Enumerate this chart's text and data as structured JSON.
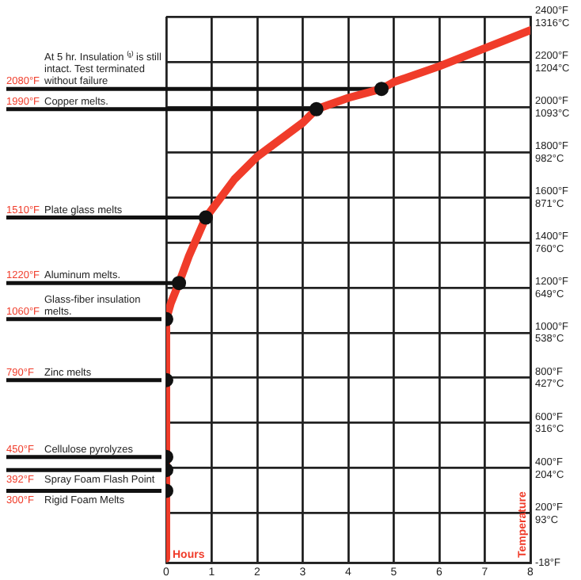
{
  "chart_data": {
    "type": "line",
    "xlabel": "Hours",
    "ylabel": "Temperature",
    "xlim": [
      0,
      8
    ],
    "xticks": [
      0,
      1,
      2,
      3,
      4,
      5,
      6,
      7,
      8
    ],
    "ylim": [
      -18,
      2400
    ],
    "yticks": [
      {
        "value": -18,
        "label": "-18°F"
      },
      {
        "value": 200,
        "label": "200°F"
      },
      {
        "value": 400,
        "label": "400°F"
      },
      {
        "value": 600,
        "label": "600°F"
      },
      {
        "value": 800,
        "label": "800°F"
      },
      {
        "value": 1000,
        "label": "1000°F"
      },
      {
        "value": 1200,
        "label": "1200°F"
      },
      {
        "value": 1400,
        "label": "1400°F"
      },
      {
        "value": 1600,
        "label": "1600°F"
      },
      {
        "value": 1800,
        "label": "1800°F"
      },
      {
        "value": 2000,
        "label": "2000°F"
      },
      {
        "value": 2200,
        "label": "2200°F"
      },
      {
        "value": 2400,
        "label": "2400°F"
      }
    ],
    "y2lim": [
      -27.8,
      1316
    ],
    "y2ticks": [
      {
        "value": 93,
        "label": "93°C"
      },
      {
        "value": 204,
        "label": "204°C"
      },
      {
        "value": 316,
        "label": "316°C"
      },
      {
        "value": 427,
        "label": "427°C"
      },
      {
        "value": 538,
        "label": "538°C"
      },
      {
        "value": 649,
        "label": "649°C"
      },
      {
        "value": 760,
        "label": "760°C"
      },
      {
        "value": 871,
        "label": "871°C"
      },
      {
        "value": 982,
        "label": "982°C"
      },
      {
        "value": 1093,
        "label": "1093°C"
      },
      {
        "value": 1204,
        "label": "1204°C"
      },
      {
        "value": 1316,
        "label": "1316°C"
      }
    ],
    "grid": true,
    "series": [
      {
        "color": "#f03c2a",
        "marker": "none",
        "x": [
          0,
          0,
          0.1,
          0.28,
          0.5,
          0.87,
          1.5,
          2,
          3,
          3.3,
          4,
          4.73,
          5,
          6,
          7,
          8
        ],
        "values": [
          0,
          1060,
          1130,
          1220,
          1340,
          1510,
          1680,
          1780,
          1930,
          1990,
          2040,
          2080,
          2110,
          2180,
          2260,
          2340
        ]
      },
      {
        "type": "scatter",
        "color": "#111111",
        "marker": "circle",
        "x": [
          4.73,
          3.3,
          0.87,
          0.28,
          0,
          0,
          0,
          0,
          0
        ],
        "values": [
          2080,
          1990,
          1510,
          1220,
          1060,
          790,
          450,
          392,
          300
        ],
        "value_labels": [
          "2080°F",
          "1990°F",
          "1510°F",
          "1220°F",
          "1060°F",
          "790°F",
          "450°F",
          "392°F",
          "300°F"
        ]
      }
    ],
    "annotations": [
      "At 5 hr. Insulation ⁽¹⁾ is still intact. Test terminated without failure",
      "Copper melts.",
      "Plate glass melts",
      "Aluminum melts.",
      "Glass-fiber insulation melts.",
      "Zinc melts",
      "Cellulose pyrolyzes",
      "Spray Foam Flash Point",
      "Rigid Foam Melts"
    ]
  }
}
